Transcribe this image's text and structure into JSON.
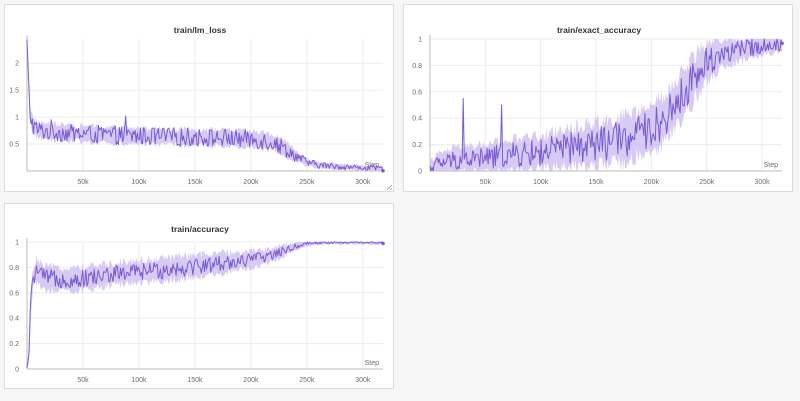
{
  "chart_data": [
    {
      "type": "line",
      "title": "train/lm_loss",
      "xlabel": "Step",
      "ylabel": "",
      "xlim": [
        0,
        318000
      ],
      "ylim": [
        0,
        2.45
      ],
      "x_ticks": [
        50000,
        100000,
        150000,
        200000,
        250000,
        300000
      ],
      "x_tick_labels": [
        "50k",
        "100k",
        "150k",
        "200k",
        "250k",
        "300k"
      ],
      "y_ticks": [
        0.5,
        1,
        1.5,
        2
      ],
      "y_tick_labels": [
        "0.5",
        "1",
        "1.5",
        "2"
      ],
      "grid": true,
      "series": [
        {
          "name": "train/lm_loss",
          "color": "#7a5ad4",
          "band_color": "#c9b9f0",
          "x": [
            0,
            1500,
            3000,
            6000,
            10000,
            20000,
            40000,
            60000,
            80000,
            100000,
            120000,
            140000,
            160000,
            180000,
            200000,
            210000,
            220000,
            230000,
            240000,
            250000,
            260000,
            280000,
            300000,
            318000
          ],
          "values": [
            2.42,
            1.5,
            1.0,
            0.82,
            0.76,
            0.73,
            0.7,
            0.68,
            0.66,
            0.65,
            0.64,
            0.63,
            0.62,
            0.61,
            0.59,
            0.57,
            0.53,
            0.42,
            0.28,
            0.16,
            0.11,
            0.08,
            0.06,
            0.05
          ],
          "noise": 0.07,
          "band": 0.06,
          "spikes": [
            [
              22000,
              0.95
            ],
            [
              88000,
              1.02
            ]
          ]
        }
      ]
    },
    {
      "type": "line",
      "title": "train/exact_accuracy",
      "xlabel": "Step",
      "ylabel": "",
      "xlim": [
        0,
        318000
      ],
      "ylim": [
        0,
        1
      ],
      "x_ticks": [
        50000,
        100000,
        150000,
        200000,
        250000,
        300000
      ],
      "x_tick_labels": [
        "50k",
        "100k",
        "150k",
        "200k",
        "250k",
        "300k"
      ],
      "y_ticks": [
        0,
        0.2,
        0.4,
        0.6,
        0.8,
        1
      ],
      "y_tick_labels": [
        "0",
        "0.2",
        "0.4",
        "0.6",
        "0.8",
        "1"
      ],
      "grid": true,
      "series": [
        {
          "name": "train/exact_accuracy",
          "color": "#7a5ad4",
          "band_color": "#c9b9f0",
          "x": [
            0,
            5000,
            20000,
            50000,
            100000,
            150000,
            180000,
            200000,
            210000,
            220000,
            230000,
            240000,
            250000,
            260000,
            280000,
            300000,
            318000
          ],
          "values": [
            0.02,
            0.05,
            0.08,
            0.1,
            0.14,
            0.2,
            0.25,
            0.32,
            0.38,
            0.48,
            0.6,
            0.72,
            0.82,
            0.88,
            0.92,
            0.95,
            0.96
          ],
          "noise": 0.14,
          "band": 0.17,
          "spikes": [
            [
              30000,
              0.55
            ],
            [
              65000,
              0.5
            ]
          ]
        }
      ]
    },
    {
      "type": "line",
      "title": "train/accuracy",
      "xlabel": "Step",
      "ylabel": "",
      "xlim": [
        0,
        318000
      ],
      "ylim": [
        0,
        1
      ],
      "x_ticks": [
        50000,
        100000,
        150000,
        200000,
        250000,
        300000
      ],
      "x_tick_labels": [
        "50k",
        "100k",
        "150k",
        "200k",
        "250k",
        "300k"
      ],
      "y_ticks": [
        0,
        0.2,
        0.4,
        0.6,
        0.8,
        1
      ],
      "y_tick_labels": [
        "0",
        "0.2",
        "0.4",
        "0.6",
        "0.8",
        "1"
      ],
      "grid": true,
      "series": [
        {
          "name": "train/accuracy",
          "color": "#7a5ad4",
          "band_color": "#c9b9f0",
          "x": [
            0,
            1500,
            3000,
            5000,
            8000,
            15000,
            40000,
            80000,
            120000,
            160000,
            200000,
            220000,
            235000,
            245000,
            255000,
            280000,
            318000
          ],
          "values": [
            0.0,
            0.1,
            0.45,
            0.7,
            0.78,
            0.72,
            0.7,
            0.75,
            0.78,
            0.82,
            0.86,
            0.9,
            0.95,
            0.98,
            0.995,
            1.0,
            1.0
          ],
          "noise": 0.07,
          "band": 0.09,
          "spikes": []
        }
      ]
    }
  ]
}
